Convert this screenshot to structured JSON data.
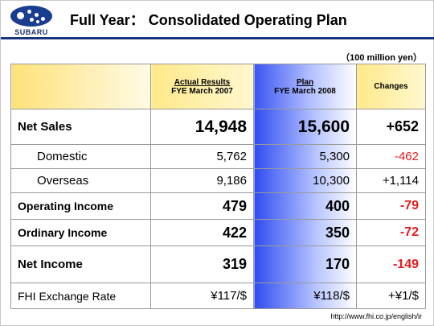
{
  "brand": {
    "name": "SUBARU",
    "color": "#1a3d8f"
  },
  "title": "Full Year： Consolidated Operating Plan",
  "units": "（100 million yen）",
  "table": {
    "headers": {
      "actual_top": "Actual Results",
      "actual_sub": "FYE March 2007",
      "plan_top": "Plan",
      "plan_sub": "FYE March 2008",
      "changes": "Changes"
    },
    "rows": [
      {
        "label": "Net Sales",
        "actual": "14,948",
        "plan": "15,600",
        "change": "+652"
      },
      {
        "label": "Domestic",
        "actual": "5,762",
        "plan": "5,300",
        "change": "-462"
      },
      {
        "label": "Overseas",
        "actual": "9,186",
        "plan": "10,300",
        "change": "+1,114"
      },
      {
        "label": "Operating Income",
        "actual": "479",
        "plan": "400",
        "change": "-79"
      },
      {
        "label": "Ordinary Income",
        "actual": "422",
        "plan": "350",
        "change": "-72"
      },
      {
        "label": "Net Income",
        "actual": "319",
        "plan": "170",
        "change": "-149"
      },
      {
        "label": "FHI Exchange Rate",
        "actual": "¥117/$",
        "plan": "¥118/$",
        "change": "+¥1/$"
      }
    ]
  },
  "colors": {
    "header_yellow": "#ffe98a",
    "plan_blue": "#3a55f2",
    "negative_red": "#e51b1b",
    "rule_blue": "#17357e"
  },
  "footer_url": "http://www.fhi.co.jp/english/ir"
}
